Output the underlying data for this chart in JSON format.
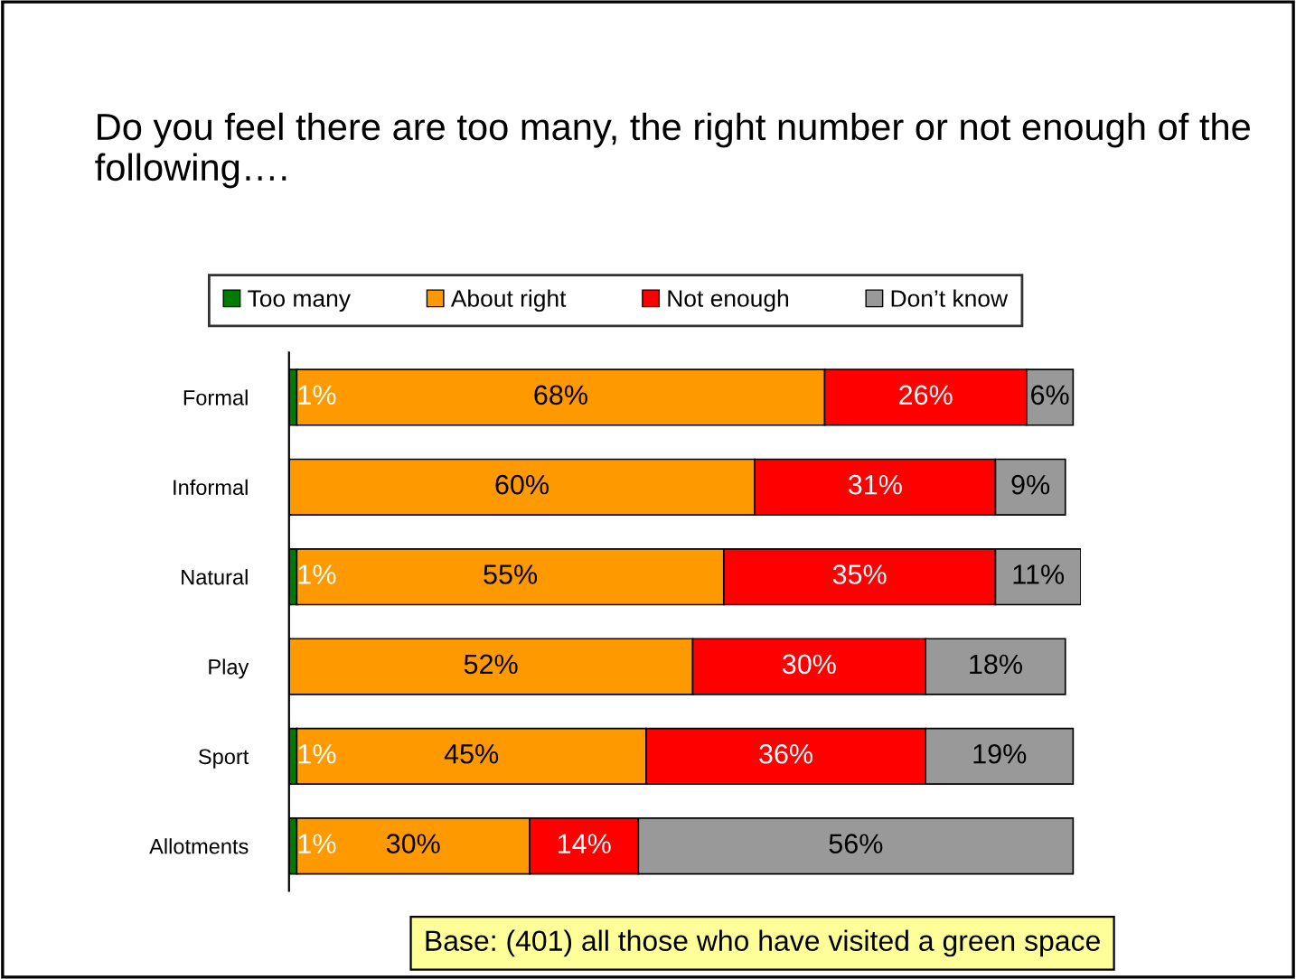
{
  "chart_data": {
    "type": "bar",
    "orientation": "horizontal",
    "stacked": true,
    "title": "Do you feel there are too many, the right number or not enough of the following….",
    "categories": [
      "Formal",
      "Informal",
      "Natural",
      "Play",
      "Sport",
      "Allotments"
    ],
    "series": [
      {
        "name": "Too many",
        "color": "#007a00",
        "values": [
          1,
          null,
          1,
          null,
          1,
          1
        ],
        "value_labels": [
          "1%",
          null,
          "1%",
          null,
          "1%",
          "1%"
        ]
      },
      {
        "name": "About right",
        "color": "#ff9900",
        "values": [
          68,
          60,
          55,
          52,
          45,
          30
        ],
        "value_labels": [
          "68%",
          "60%",
          "55%",
          "52%",
          "45%",
          "30%"
        ]
      },
      {
        "name": "Not enough",
        "color": "#ff0000",
        "values": [
          26,
          31,
          35,
          30,
          36,
          14
        ],
        "value_labels": [
          "26%",
          "31%",
          "35%",
          "30%",
          "36%",
          "14%"
        ]
      },
      {
        "name": "Don’t know",
        "color": "#999999",
        "values": [
          6,
          9,
          11,
          18,
          19,
          56
        ],
        "value_labels": [
          "6%",
          "9%",
          "11%",
          "18%",
          "19%",
          "56%"
        ]
      }
    ],
    "legend": "top",
    "grid": false,
    "annotations": [
      "Base: (401) all those who have visited a green space"
    ]
  }
}
